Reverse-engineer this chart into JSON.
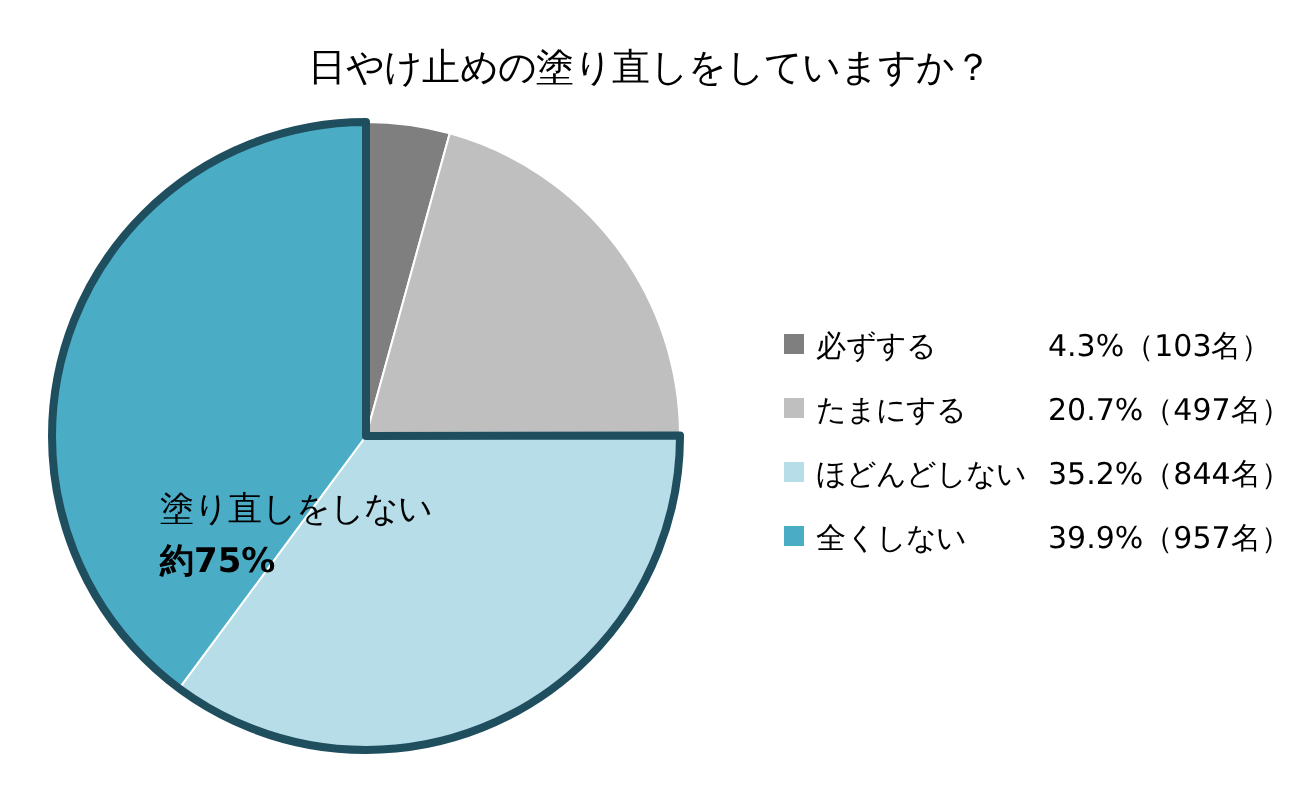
{
  "chart_data": {
    "type": "pie",
    "title": "日やけ止めの塗り直しをしていますか？",
    "categories": [
      "必ずする",
      "たまにする",
      "ほどんどしない",
      "全くしない"
    ],
    "values": [
      4.3,
      20.7,
      35.2,
      39.9
    ],
    "colors": [
      "#7f7f7f",
      "#bfbfbf",
      "#b7dde8",
      "#4bacc6"
    ],
    "value_labels": [
      "4.3%（103名）",
      "20.7%（497名）",
      "35.2%（844名）",
      "39.9%（957名）"
    ],
    "legend": "right",
    "annotations": [
      "塗り直しをしない",
      "約75%"
    ]
  }
}
